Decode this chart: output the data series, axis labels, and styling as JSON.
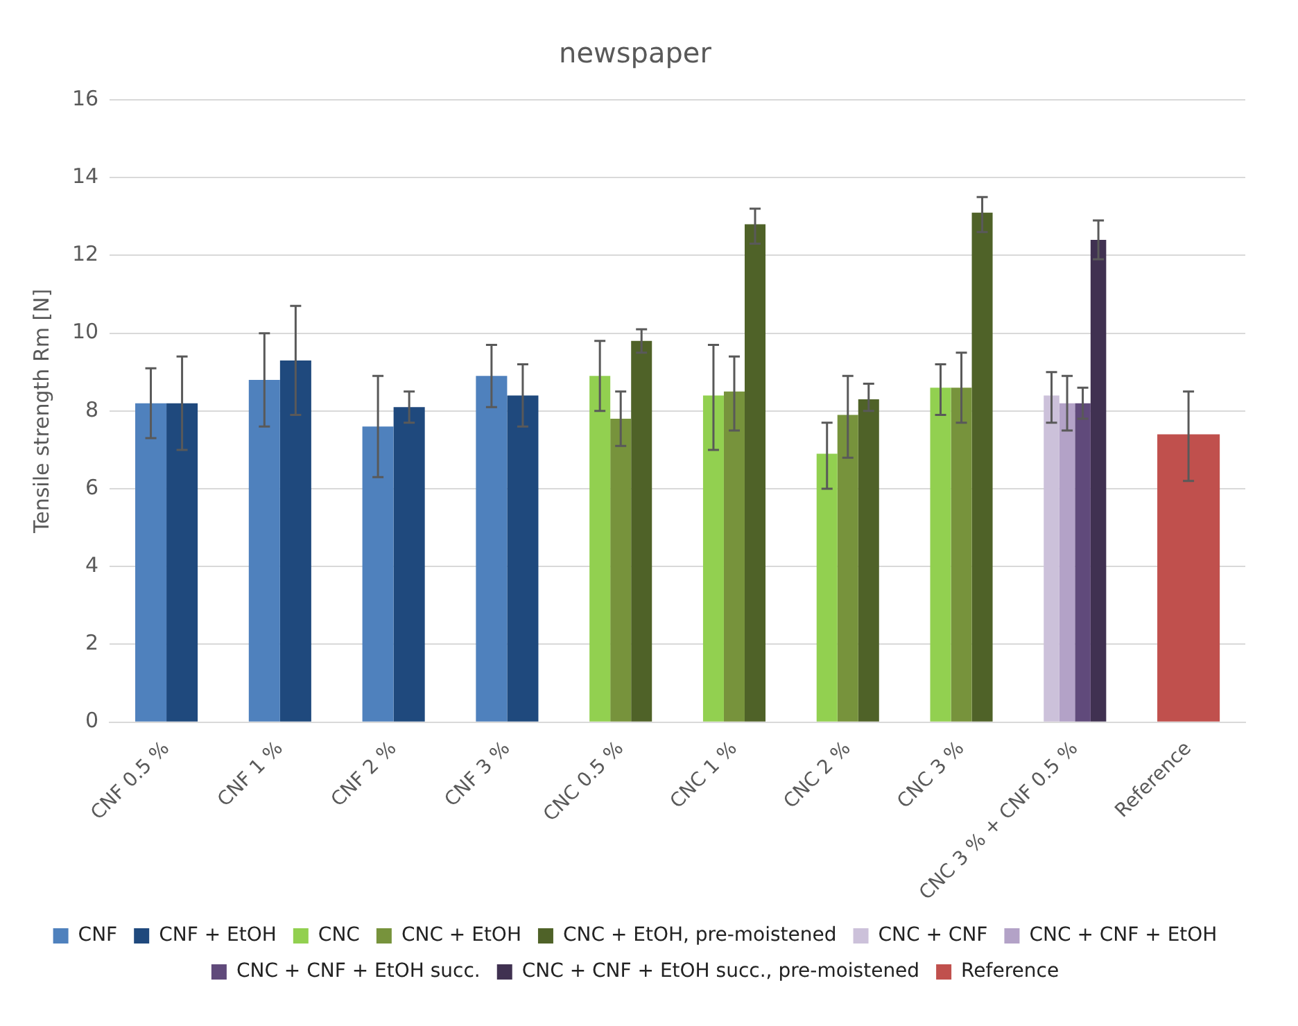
{
  "chart_data": {
    "type": "bar",
    "title": "newspaper",
    "ylabel": "Tensile strength Rm [N]",
    "categories": [
      "CNF 0.5 %",
      "CNF 1 %",
      "CNF 2 %",
      "CNF 3 %",
      "CNC 0.5 %",
      "CNC 1 %",
      "CNC 2 %",
      "CNC 3 %",
      "CNC 3 % + CNF 0.5 %",
      "Reference"
    ],
    "ylim": [
      0,
      16
    ],
    "yticks": [
      0,
      2,
      4,
      6,
      8,
      10,
      12,
      14,
      16
    ],
    "grid": "y",
    "legend": "bottom",
    "series": [
      {
        "name": "CNF",
        "color": "#4f81bd",
        "values": [
          8.2,
          8.8,
          7.6,
          8.9,
          null,
          null,
          null,
          null,
          null,
          null
        ],
        "errors": [
          [
            7.3,
            9.1
          ],
          [
            7.6,
            10.0
          ],
          [
            6.3,
            8.9
          ],
          [
            8.1,
            9.7
          ],
          null,
          null,
          null,
          null,
          null,
          null
        ]
      },
      {
        "name": "CNF + EtOH",
        "color": "#1f497d",
        "values": [
          8.2,
          9.3,
          8.1,
          8.4,
          null,
          null,
          null,
          null,
          null,
          null
        ],
        "errors": [
          [
            7.0,
            9.4
          ],
          [
            7.9,
            10.7
          ],
          [
            7.7,
            8.5
          ],
          [
            7.6,
            9.2
          ],
          null,
          null,
          null,
          null,
          null,
          null
        ]
      },
      {
        "name": "CNC",
        "color": "#92d050",
        "values": [
          null,
          null,
          null,
          null,
          8.9,
          8.4,
          6.9,
          8.6,
          null,
          null
        ],
        "errors": [
          null,
          null,
          null,
          null,
          [
            8.0,
            9.8
          ],
          [
            7.0,
            9.7
          ],
          [
            6.0,
            7.7
          ],
          [
            7.9,
            9.2
          ],
          null,
          null
        ]
      },
      {
        "name": "CNC + EtOH",
        "color": "#77933c",
        "values": [
          null,
          null,
          null,
          null,
          7.8,
          8.5,
          7.9,
          8.6,
          null,
          null
        ],
        "errors": [
          null,
          null,
          null,
          null,
          [
            7.1,
            8.5
          ],
          [
            7.5,
            9.4
          ],
          [
            6.8,
            8.9
          ],
          [
            7.7,
            9.5
          ],
          null,
          null
        ]
      },
      {
        "name": "CNC + EtOH, pre-moistened",
        "color": "#4f6228",
        "values": [
          null,
          null,
          null,
          null,
          9.8,
          12.8,
          8.3,
          13.1,
          null,
          null
        ],
        "errors": [
          null,
          null,
          null,
          null,
          [
            9.5,
            10.1
          ],
          [
            12.3,
            13.2
          ],
          [
            8.0,
            8.7
          ],
          [
            12.6,
            13.5
          ],
          null,
          null
        ]
      },
      {
        "name": "CNC + CNF",
        "color": "#ccc1da",
        "values": [
          null,
          null,
          null,
          null,
          null,
          null,
          null,
          null,
          8.4,
          null
        ],
        "errors": [
          null,
          null,
          null,
          null,
          null,
          null,
          null,
          null,
          [
            7.7,
            9.0
          ],
          null
        ]
      },
      {
        "name": "CNC + CNF + EtOH",
        "color": "#b3a2c7",
        "values": [
          null,
          null,
          null,
          null,
          null,
          null,
          null,
          null,
          8.2,
          null
        ],
        "errors": [
          null,
          null,
          null,
          null,
          null,
          null,
          null,
          null,
          [
            7.5,
            8.9
          ],
          null
        ]
      },
      {
        "name": "CNC + CNF + EtOH succ.",
        "color": "#604a7b",
        "values": [
          null,
          null,
          null,
          null,
          null,
          null,
          null,
          null,
          8.2,
          null
        ],
        "errors": [
          null,
          null,
          null,
          null,
          null,
          null,
          null,
          null,
          [
            7.8,
            8.6
          ],
          null
        ]
      },
      {
        "name": "CNC + CNF + EtOH succ., pre-moistened",
        "color": "#403151",
        "values": [
          null,
          null,
          null,
          null,
          null,
          null,
          null,
          null,
          12.4,
          null
        ],
        "errors": [
          null,
          null,
          null,
          null,
          null,
          null,
          null,
          null,
          [
            11.9,
            12.9
          ],
          null
        ]
      },
      {
        "name": "Reference",
        "color": "#c0504d",
        "values": [
          null,
          null,
          null,
          null,
          null,
          null,
          null,
          null,
          null,
          7.4
        ],
        "errors": [
          null,
          null,
          null,
          null,
          null,
          null,
          null,
          null,
          null,
          [
            6.2,
            8.5
          ]
        ]
      }
    ]
  }
}
